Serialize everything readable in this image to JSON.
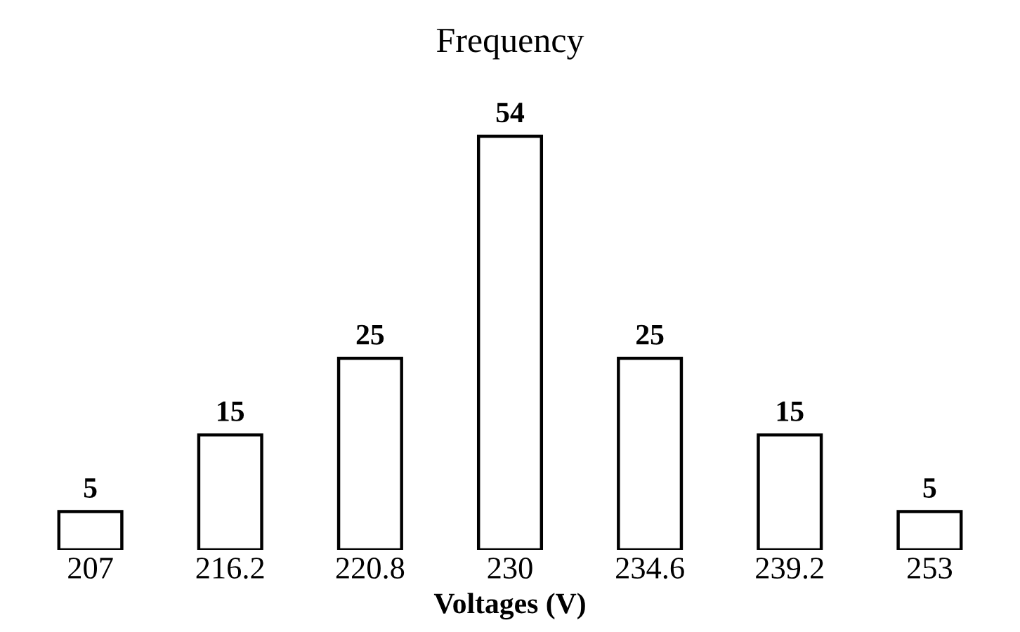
{
  "chart_data": {
    "type": "bar",
    "title": "Frequency",
    "xlabel": "Voltages (V)",
    "categories": [
      "207",
      "216.2",
      "220.8",
      "230",
      "234.6",
      "239.2",
      "253"
    ],
    "values": [
      5,
      15,
      25,
      54,
      25,
      15,
      5
    ],
    "color": "#ffffff",
    "data_labels": true,
    "grid": false
  }
}
